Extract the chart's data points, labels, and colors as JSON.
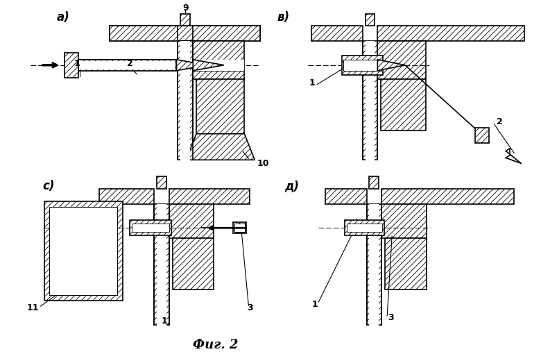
{
  "bg_color": "#ffffff",
  "lc": "#000000",
  "lw": 1.2,
  "hatch": "////",
  "hatch_lw": 0.5,
  "title": "Фиг. 2",
  "label_a": "а)",
  "label_b": "в)",
  "label_c": "с)",
  "label_d": "д)",
  "figsize": [
    7.8,
    5.2
  ],
  "dpi": 100
}
